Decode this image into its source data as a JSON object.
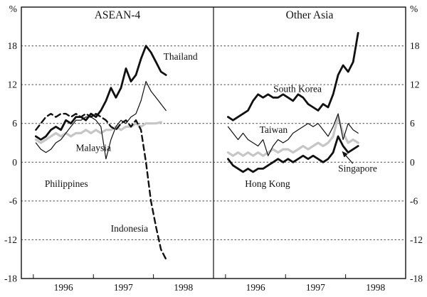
{
  "chart_data": {
    "type": "line",
    "title": "",
    "unit": "%",
    "ylim": [
      -18,
      24
    ],
    "yticks": [
      18,
      12,
      6,
      0,
      -6,
      -12,
      -18
    ],
    "grid_ticks": [
      18,
      12,
      6,
      0,
      -6,
      -12
    ],
    "xlim": [
      1995.8,
      1999.0
    ],
    "year_ticks": [
      1996,
      1997,
      1998,
      1999
    ],
    "xtick_labels": [
      {
        "label": "1996",
        "t": 1996.5
      },
      {
        "label": "1997",
        "t": 1997.5
      },
      {
        "label": "1998",
        "t": 1998.5
      }
    ],
    "x_start": 1996.042,
    "x_step_months": 1,
    "styles": {
      "thick": {
        "color": "#111111",
        "width": 2.8
      },
      "thin": {
        "color": "#111111",
        "width": 1.2
      },
      "gray-thick": {
        "color": "#c6c6c6",
        "width": 3.2
      },
      "dashed": {
        "color": "#111111",
        "width": 2.4,
        "dash": "8 5"
      }
    },
    "panels": [
      {
        "title": "ASEAN-4",
        "series": [
          {
            "name": "Malaysia",
            "style": "gray-thick",
            "values": [
              3.5,
              3.0,
              3.5,
              4.0,
              4.5,
              4.0,
              4.5,
              4.0,
              4.5,
              4.5,
              5.0,
              4.5,
              5.0,
              4.5,
              5.0,
              5.0,
              5.5,
              5.0,
              5.5,
              5.5,
              6.0,
              5.5,
              6.0,
              6.0,
              6.0,
              6.2
            ]
          },
          {
            "name": "Philippines",
            "style": "thin",
            "values": [
              3.0,
              2.0,
              1.5,
              2.0,
              3.0,
              3.5,
              4.5,
              5.5,
              6.5,
              6.5,
              7.0,
              7.0,
              6.5,
              5.5,
              0.5,
              3.5,
              5.5,
              6.5,
              6.0,
              7.0,
              7.5,
              9.5,
              12.5,
              11.0,
              10.0,
              9.0,
              8.0
            ]
          },
          {
            "name": "Indonesia",
            "style": "dashed",
            "values": [
              5.0,
              6.0,
              7.0,
              7.5,
              7.0,
              7.5,
              7.5,
              7.0,
              7.5,
              7.0,
              7.5,
              7.0,
              7.5,
              7.0,
              6.5,
              5.5,
              5.0,
              6.0,
              6.5,
              5.5,
              6.5,
              5.0,
              0.0,
              -6.0,
              -10.0,
              -13.5,
              -15.0
            ]
          },
          {
            "name": "Thailand",
            "style": "thick",
            "values": [
              4.0,
              3.5,
              4.0,
              5.0,
              5.5,
              5.0,
              6.5,
              6.0,
              7.0,
              7.0,
              6.5,
              7.5,
              7.0,
              8.0,
              9.5,
              11.5,
              10.0,
              11.5,
              14.5,
              12.5,
              13.5,
              16.0,
              18.0,
              17.0,
              15.5,
              14.0,
              13.5
            ]
          }
        ],
        "labels": [
          {
            "text": "Thailand",
            "t": 1998.45,
            "v": 16.3
          },
          {
            "text": "Malaysia",
            "t": 1997.0,
            "v": 2.2
          },
          {
            "text": "Philippines",
            "t": 1996.55,
            "v": -3.4
          },
          {
            "text": "Indonesia",
            "t": 1997.6,
            "v": -10.3
          }
        ],
        "leaders": []
      },
      {
        "title": "Other Asia",
        "series": [
          {
            "name": "Singapore",
            "style": "gray-thick",
            "values": [
              1.5,
              1.0,
              1.5,
              1.0,
              1.5,
              1.0,
              1.5,
              1.0,
              1.5,
              2.0,
              1.5,
              2.0,
              2.0,
              1.5,
              2.0,
              2.5,
              2.0,
              2.5,
              3.0,
              2.5,
              3.0,
              4.0,
              7.0,
              4.5,
              3.0,
              3.5,
              3.0
            ]
          },
          {
            "name": "Taiwan",
            "style": "thin",
            "values": [
              5.5,
              4.5,
              3.5,
              4.5,
              3.5,
              3.0,
              2.5,
              3.5,
              1.0,
              2.5,
              3.5,
              3.0,
              3.5,
              4.5,
              5.0,
              5.5,
              6.0,
              5.5,
              6.0,
              5.0,
              4.0,
              5.5,
              7.5,
              3.5,
              6.0,
              5.0,
              4.5
            ]
          },
          {
            "name": "Hong Kong",
            "style": "thick",
            "values": [
              0.5,
              -0.5,
              -1.0,
              -1.5,
              -1.0,
              -1.5,
              -1.0,
              -1.0,
              -0.5,
              0.0,
              0.5,
              0.0,
              0.5,
              0.0,
              0.5,
              1.0,
              0.5,
              1.0,
              0.5,
              0.0,
              0.5,
              1.5,
              4.0,
              2.5,
              1.5,
              2.0,
              2.5
            ]
          },
          {
            "name": "South Korea",
            "style": "thick",
            "values": [
              7.0,
              6.5,
              7.0,
              7.5,
              8.0,
              9.5,
              10.5,
              10.0,
              10.5,
              10.0,
              10.0,
              10.5,
              10.0,
              9.5,
              10.5,
              10.0,
              9.0,
              8.5,
              8.0,
              9.0,
              8.5,
              10.5,
              13.5,
              15.0,
              14.0,
              15.5,
              20.0
            ]
          }
        ],
        "labels": [
          {
            "text": "South Korea",
            "t": 1997.2,
            "v": 11.3
          },
          {
            "text": "Taiwan",
            "t": 1996.8,
            "v": 5.0
          },
          {
            "text": "Hong Kong",
            "t": 1996.7,
            "v": -3.4
          },
          {
            "text": "Singapore",
            "t": 1998.2,
            "v": -1.0
          }
        ],
        "leaders": [
          {
            "x1": 1998.12,
            "y1": -0.2,
            "x2": 1997.95,
            "y2": 1.6
          }
        ]
      }
    ]
  }
}
